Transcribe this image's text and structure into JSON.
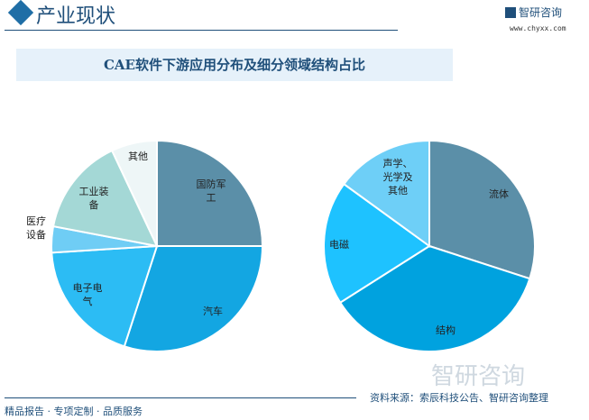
{
  "header": {
    "title": "产业现状",
    "logo_text": "智研咨询",
    "url": "www.chyxx.com"
  },
  "chart_data": [
    {
      "type": "pie",
      "title": "CAE软件下游应用分布及细分领域结构占比",
      "unit": "%",
      "slices": [
        {
          "label": "国防军工",
          "value": 25,
          "color": "#5b8fa8"
        },
        {
          "label": "汽车",
          "value": 30,
          "color": "#13a6e2"
        },
        {
          "label": "电子电气",
          "value": 19,
          "color": "#2cbcf4"
        },
        {
          "label": "医疗设备",
          "value": 4,
          "color": "#6fcdf5"
        },
        {
          "label": "工业装备",
          "value": 15,
          "color": "#a4d8d6"
        },
        {
          "label": "其他",
          "value": 7,
          "color": "#eef6f7"
        }
      ]
    },
    {
      "type": "pie",
      "unit": "%",
      "slices": [
        {
          "label": "流体",
          "value": 30,
          "color": "#5b8fa8"
        },
        {
          "label": "结构",
          "value": 36,
          "color": "#00a2df"
        },
        {
          "label": "电磁",
          "value": 19,
          "color": "#1ec2ff"
        },
        {
          "label": "声学、光学及其他",
          "value": 15,
          "color": "#6ecff7"
        }
      ]
    }
  ],
  "watermark": "智研咨询",
  "source": "资料来源：索辰科技公告、智研咨询整理",
  "footer": "精品报告 · 专项定制 · 品质服务"
}
